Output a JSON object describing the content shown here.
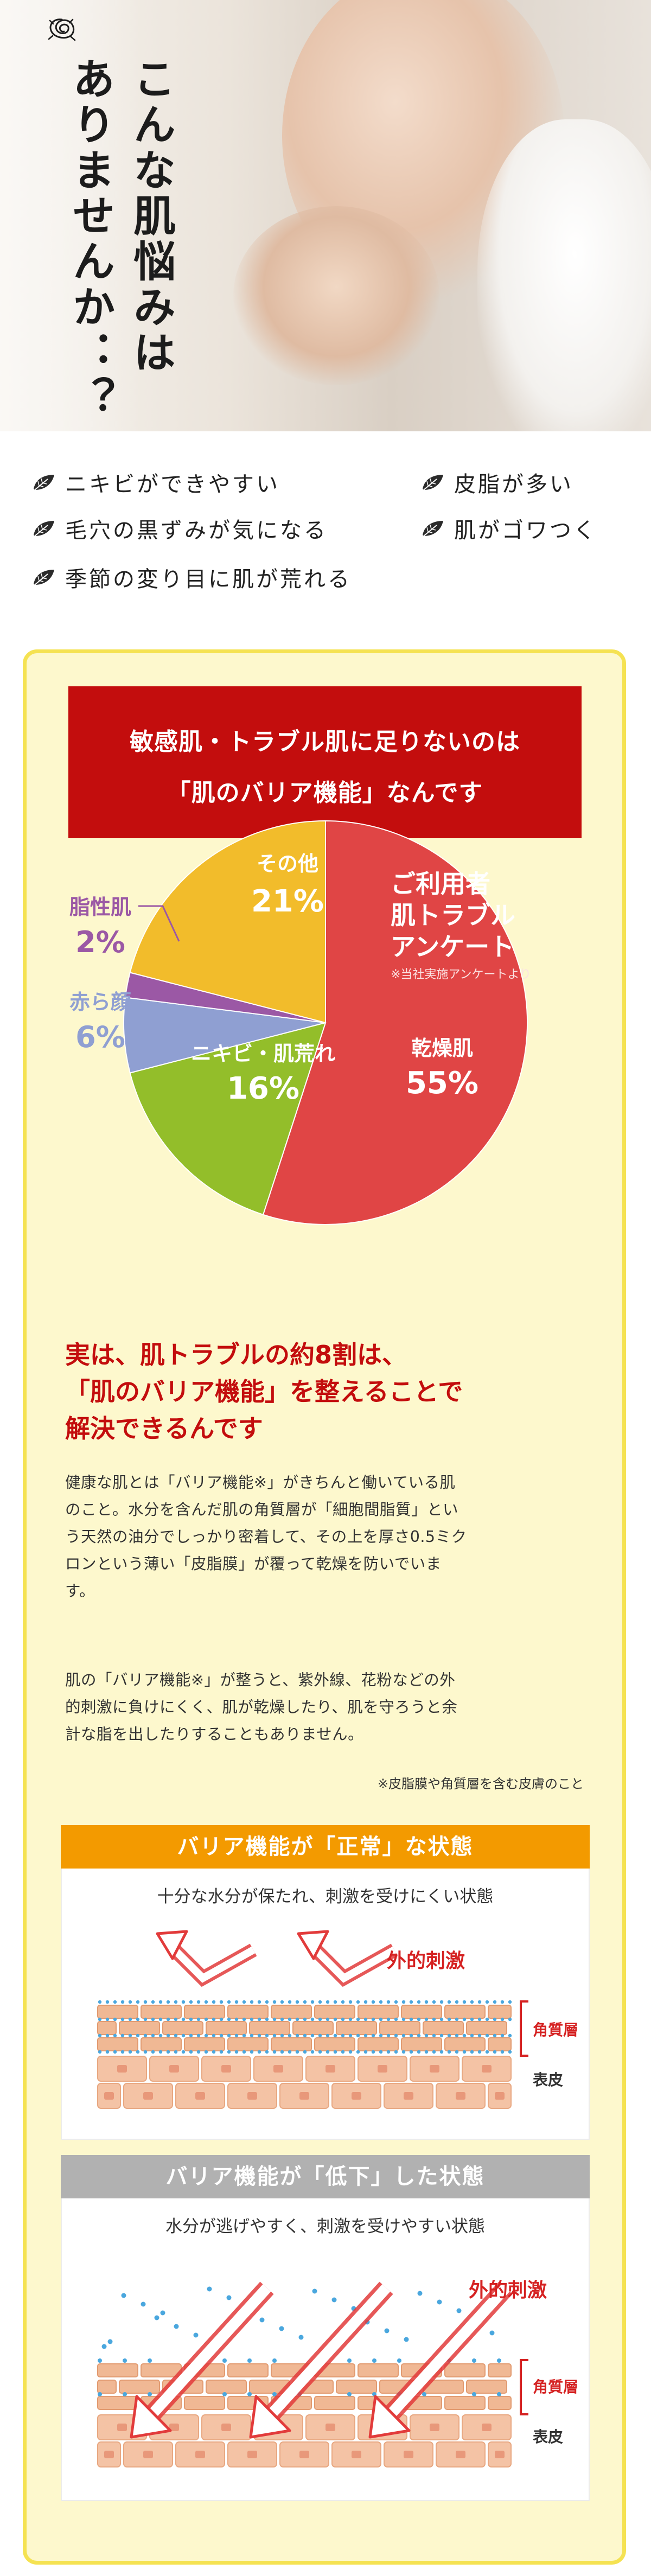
{
  "hero": {
    "title_lines": [
      "こんな肌悩みは",
      "ありませんか：？"
    ]
  },
  "concerns": [
    "ニキビができやすい",
    "皮脂が多い",
    "毛穴の黒ずみが気になる",
    "肌がゴワつく",
    "季節の変り目に肌が荒れる"
  ],
  "headline_box": {
    "line1": "敏感肌・トラブル肌に足りないのは",
    "line2": "「肌のバリア機能」なんです"
  },
  "chart_data": {
    "type": "pie",
    "title": "ご利用者 肌トラブル アンケート",
    "center_lines": [
      "ご利用者",
      "肌トラブル",
      "アンケート"
    ],
    "note": "※当社実施アンケートより",
    "slices": [
      {
        "label": "乾燥肌",
        "value": 55,
        "value_text": "55%",
        "color": "#e04545"
      },
      {
        "label": "ニキビ・肌荒れ",
        "value": 16,
        "value_text": "16%",
        "color": "#93be2a"
      },
      {
        "label": "赤ら顔",
        "value": 6,
        "value_text": "6%",
        "color": "#8f9fd2"
      },
      {
        "label": "脂性肌",
        "value": 2,
        "value_text": "2%",
        "color": "#9b58a5"
      },
      {
        "label": "その他",
        "value": 21,
        "value_text": "21%",
        "color": "#f2bc2b"
      }
    ]
  },
  "headline": {
    "lines": [
      "実は、肌トラブルの約8割は、",
      "「肌のバリア機能」を整えることで",
      "解決できるんです"
    ]
  },
  "paragraph1": [
    "健康な肌とは「バリア機能※」がきちんと働いている肌",
    "のこと。水分を含んだ肌の角質層が「細胞間脂質」とい",
    "う天然の油分でしっかり密着して、その上を厚さ0.5ミク",
    "ロンという薄い「皮脂膜」が覆って乾燥を防いでいま",
    "す。"
  ],
  "paragraph2": [
    "肌の「バリア機能※」が整うと、紫外線、花粉などの外",
    "的刺激に負けにくく、肌が乾燥したり、肌を守ろうと余",
    "計な脂を出したりすることもありません。"
  ],
  "footnote": "※皮脂膜や角質層を含む皮膚のこと",
  "diagram_normal": {
    "header": "バリア機能が「正常」な状態",
    "subtitle": "十分な水分が保たれ、刺激を受けにくい状態",
    "external": "外的刺激",
    "layer1": "角質層",
    "layer2": "表皮",
    "header_color": "#f39a00"
  },
  "diagram_low": {
    "header": "バリア機能が「低下」した状態",
    "subtitle": "水分が逃げやすく、刺激を受けやすい状態",
    "external": "外的刺激",
    "layer1": "角質層",
    "layer2": "表皮",
    "header_color": "#b1b1b1"
  }
}
